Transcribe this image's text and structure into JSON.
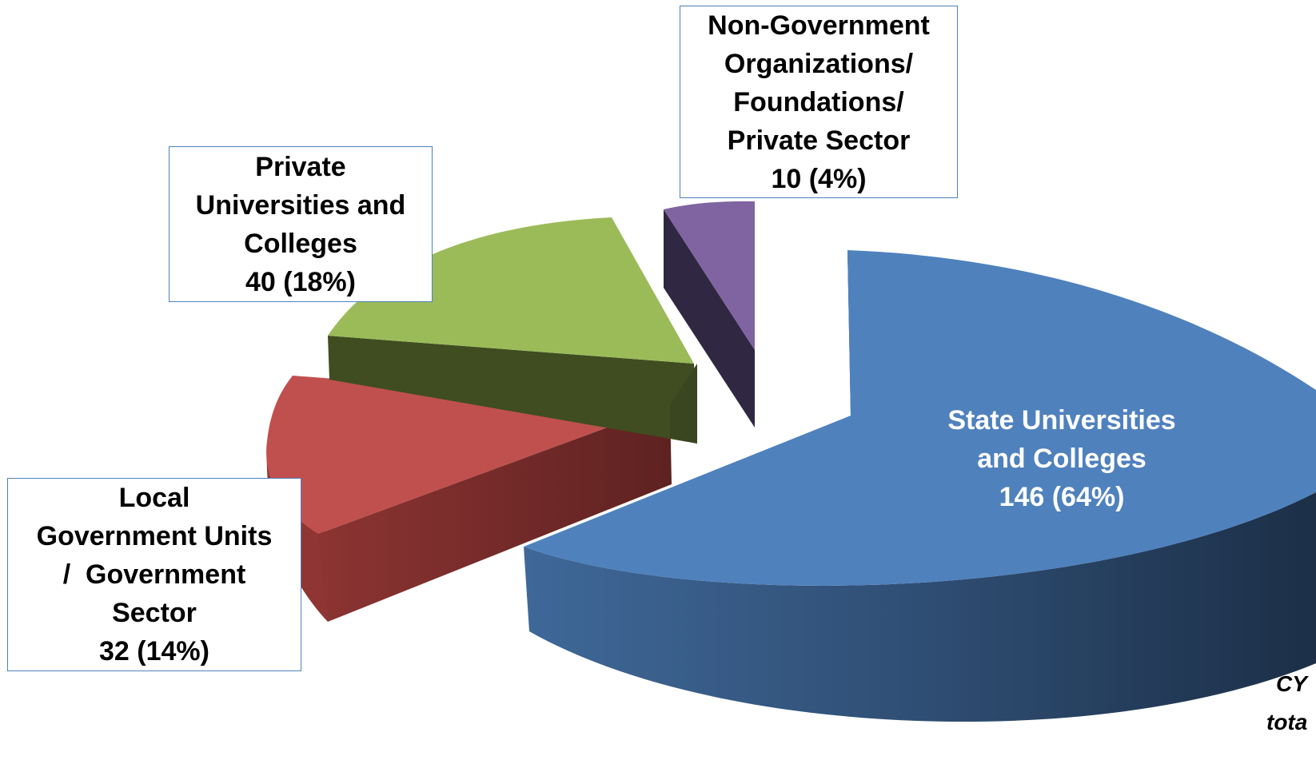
{
  "chart_data": {
    "type": "pie",
    "style": "3d-exploded",
    "slices": [
      {
        "key": "suc",
        "label_lines": [
          "State Universities",
          "and Colleges"
        ],
        "value": 146,
        "value_label": "146 (64%)",
        "percent": 64,
        "color": "#4f81bd"
      },
      {
        "key": "lgu",
        "label_lines": [
          "Local",
          "Government Units",
          "/  Government",
          "Sector"
        ],
        "value": 32,
        "value_label": "32 (14%)",
        "percent": 14,
        "color": "#c0504d"
      },
      {
        "key": "puc",
        "label_lines": [
          "Private",
          "Universities and",
          "Colleges"
        ],
        "value": 40,
        "value_label": "40 (18%)",
        "percent": 18,
        "color": "#9bbb59"
      },
      {
        "key": "ngo",
        "label_lines": [
          "Non-Government",
          "Organizations/",
          "Foundations/",
          "Private Sector"
        ],
        "value": 10,
        "value_label": "10 (4%)",
        "percent": 4,
        "color": "#8064a2"
      }
    ],
    "note_lines": [
      "CY",
      "tota"
    ]
  }
}
